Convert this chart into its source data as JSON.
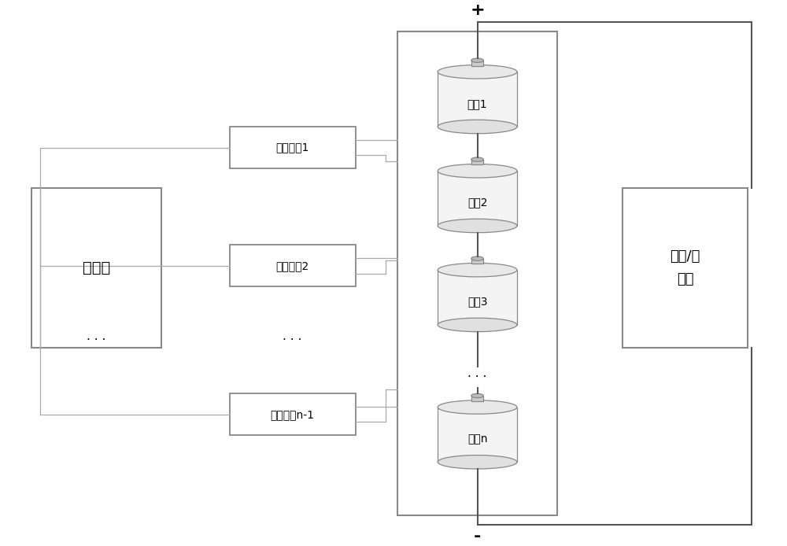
{
  "bg_color": "#ffffff",
  "line_color": "#aaaaaa",
  "dark_line_color": "#555555",
  "box_line_color": "#888888",
  "text_color": "#000000",
  "controller_label": "控制器",
  "load_label": "负载/充\n电器",
  "balance_circuits": [
    "均衡电路1",
    "均衡电路2",
    "均衡电路n-1"
  ],
  "batteries": [
    "电池1",
    "电池2",
    "电池3",
    "电池n"
  ],
  "plus_label": "+",
  "minus_label": "-",
  "dots_label": "· · ·",
  "figsize": [
    10.0,
    6.94
  ],
  "dpi": 100
}
